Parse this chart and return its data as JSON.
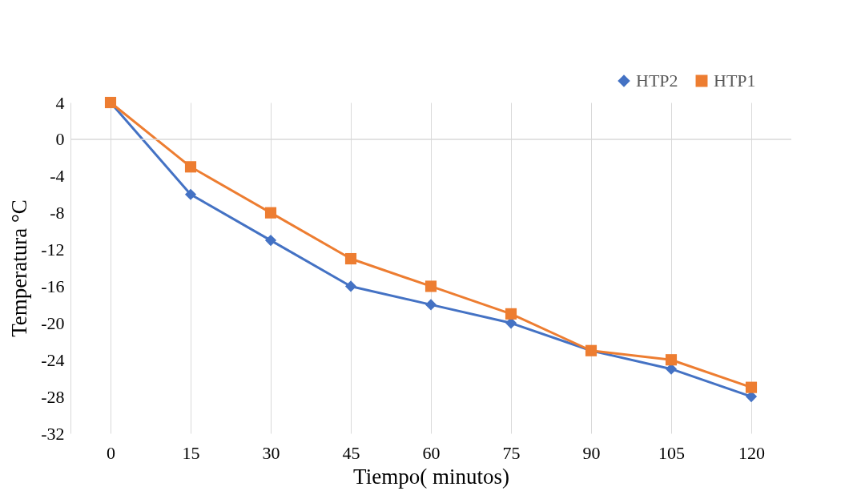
{
  "chart_data": {
    "type": "line",
    "xlabel": "Tiempo( minutos)",
    "ylabel": "Temperatura °C",
    "categories": [
      "0",
      "15",
      "30",
      "45",
      "60",
      "75",
      "90",
      "105",
      "120"
    ],
    "series": [
      {
        "name": "HTP2",
        "color": "#4472c4",
        "marker": "diamond",
        "values": [
          4,
          -6,
          -11,
          -16,
          -18,
          -20,
          -23,
          -25,
          -28
        ]
      },
      {
        "name": "HTP1",
        "color": "#ed7d31",
        "marker": "square",
        "values": [
          4,
          -3,
          -8,
          -13,
          -16,
          -19,
          -23,
          -24,
          -27
        ]
      }
    ],
    "ylim": [
      -32,
      4
    ],
    "yticks": [
      4,
      0,
      -4,
      -8,
      -12,
      -16,
      -20,
      -24,
      -28,
      -32
    ],
    "grid": "x",
    "legend": "top right",
    "line_style": "solid",
    "ref_lines": [
      {
        "axis": "y",
        "value": 0,
        "color": "#d9d9d9"
      }
    ]
  }
}
